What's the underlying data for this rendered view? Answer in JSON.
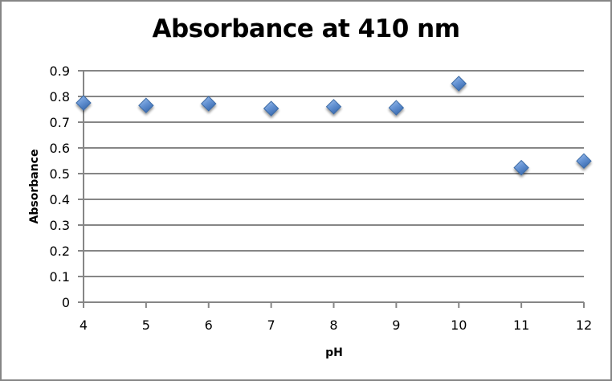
{
  "chart_data": {
    "type": "scatter",
    "title": "Absorbance at 410 nm",
    "xlabel": "pH",
    "ylabel": "Absorbance",
    "xlim": [
      4,
      12
    ],
    "ylim": [
      0,
      0.9
    ],
    "x_ticks": [
      "4",
      "5",
      "6",
      "7",
      "8",
      "9",
      "10",
      "11",
      "12"
    ],
    "y_ticks": [
      "0",
      "0.1",
      "0.2",
      "0.3",
      "0.4",
      "0.5",
      "0.6",
      "0.7",
      "0.8",
      "0.9"
    ],
    "grid": {
      "horizontal": true,
      "vertical": false
    },
    "legend": null,
    "marker": {
      "shape": "diamond",
      "color": "#4F81BD"
    },
    "series": [
      {
        "name": "Absorbance",
        "x": [
          4,
          5,
          6,
          7,
          8,
          9,
          10,
          11,
          12
        ],
        "y": [
          0.775,
          0.765,
          0.772,
          0.753,
          0.76,
          0.756,
          0.85,
          0.523,
          0.549
        ]
      }
    ]
  },
  "colors": {
    "border": "#868686",
    "gridline": "#868686",
    "marker_fill": "#4F81BD",
    "marker_light": "#8DB3E2",
    "marker_stroke": "#3A6AA6"
  }
}
